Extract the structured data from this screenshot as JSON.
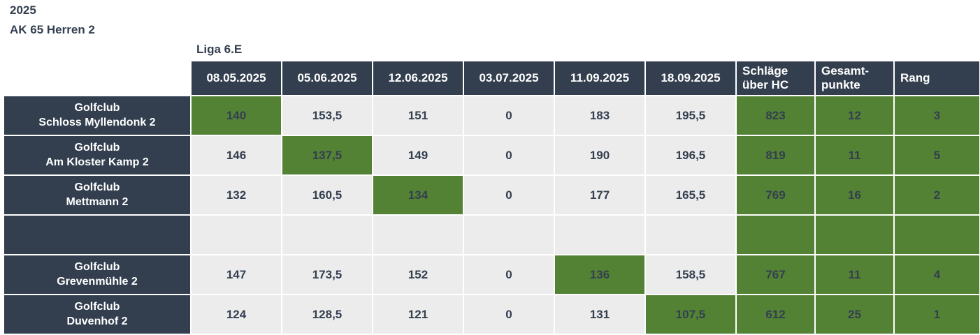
{
  "page": {
    "season": "2025",
    "group": "AK 65 Herren 2",
    "league": "Liga 6.E"
  },
  "colors": {
    "header_navy": "#333F4F",
    "highlight_green": "#548235",
    "cell_gray": "#ECECEC",
    "text_on_dark": "#FFFFFF",
    "text_on_light": "#333F4F"
  },
  "table": {
    "date_headers": [
      "08.05.2025",
      "05.06.2025",
      "12.06.2025",
      "03.07.2025",
      "11.09.2025",
      "18.09.2025"
    ],
    "summary_headers": [
      "Schläge über HC",
      "Gesamt-punkte",
      "Rang"
    ],
    "rows": [
      {
        "club": "Golfclub\nSchloss Myllendonk 2",
        "scores": [
          "140",
          "153,5",
          "151",
          "0",
          "183",
          "195,5"
        ],
        "best_index": 0,
        "summary": [
          "823",
          "12",
          "3"
        ]
      },
      {
        "club": "Golfclub\nAm Kloster Kamp 2",
        "scores": [
          "146",
          "137,5",
          "149",
          "0",
          "190",
          "196,5"
        ],
        "best_index": 1,
        "summary": [
          "819",
          "11",
          "5"
        ]
      },
      {
        "club": "Golfclub\nMettmann 2",
        "scores": [
          "132",
          "160,5",
          "134",
          "0",
          "177",
          "165,5"
        ],
        "best_index": 2,
        "summary": [
          "769",
          "16",
          "2"
        ]
      },
      {
        "club": "",
        "scores": [
          "",
          "",
          "",
          "",
          "",
          ""
        ],
        "best_index": null,
        "summary": [
          "",
          "",
          ""
        ]
      },
      {
        "club": "Golfclub\nGrevenmühle 2",
        "scores": [
          "147",
          "173,5",
          "152",
          "0",
          "136",
          "158,5"
        ],
        "best_index": 4,
        "summary": [
          "767",
          "11",
          "4"
        ]
      },
      {
        "club": "Golfclub\nDuvenhof 2",
        "scores": [
          "124",
          "128,5",
          "121",
          "0",
          "131",
          "107,5"
        ],
        "best_index": 5,
        "summary": [
          "612",
          "25",
          "1"
        ]
      }
    ]
  }
}
